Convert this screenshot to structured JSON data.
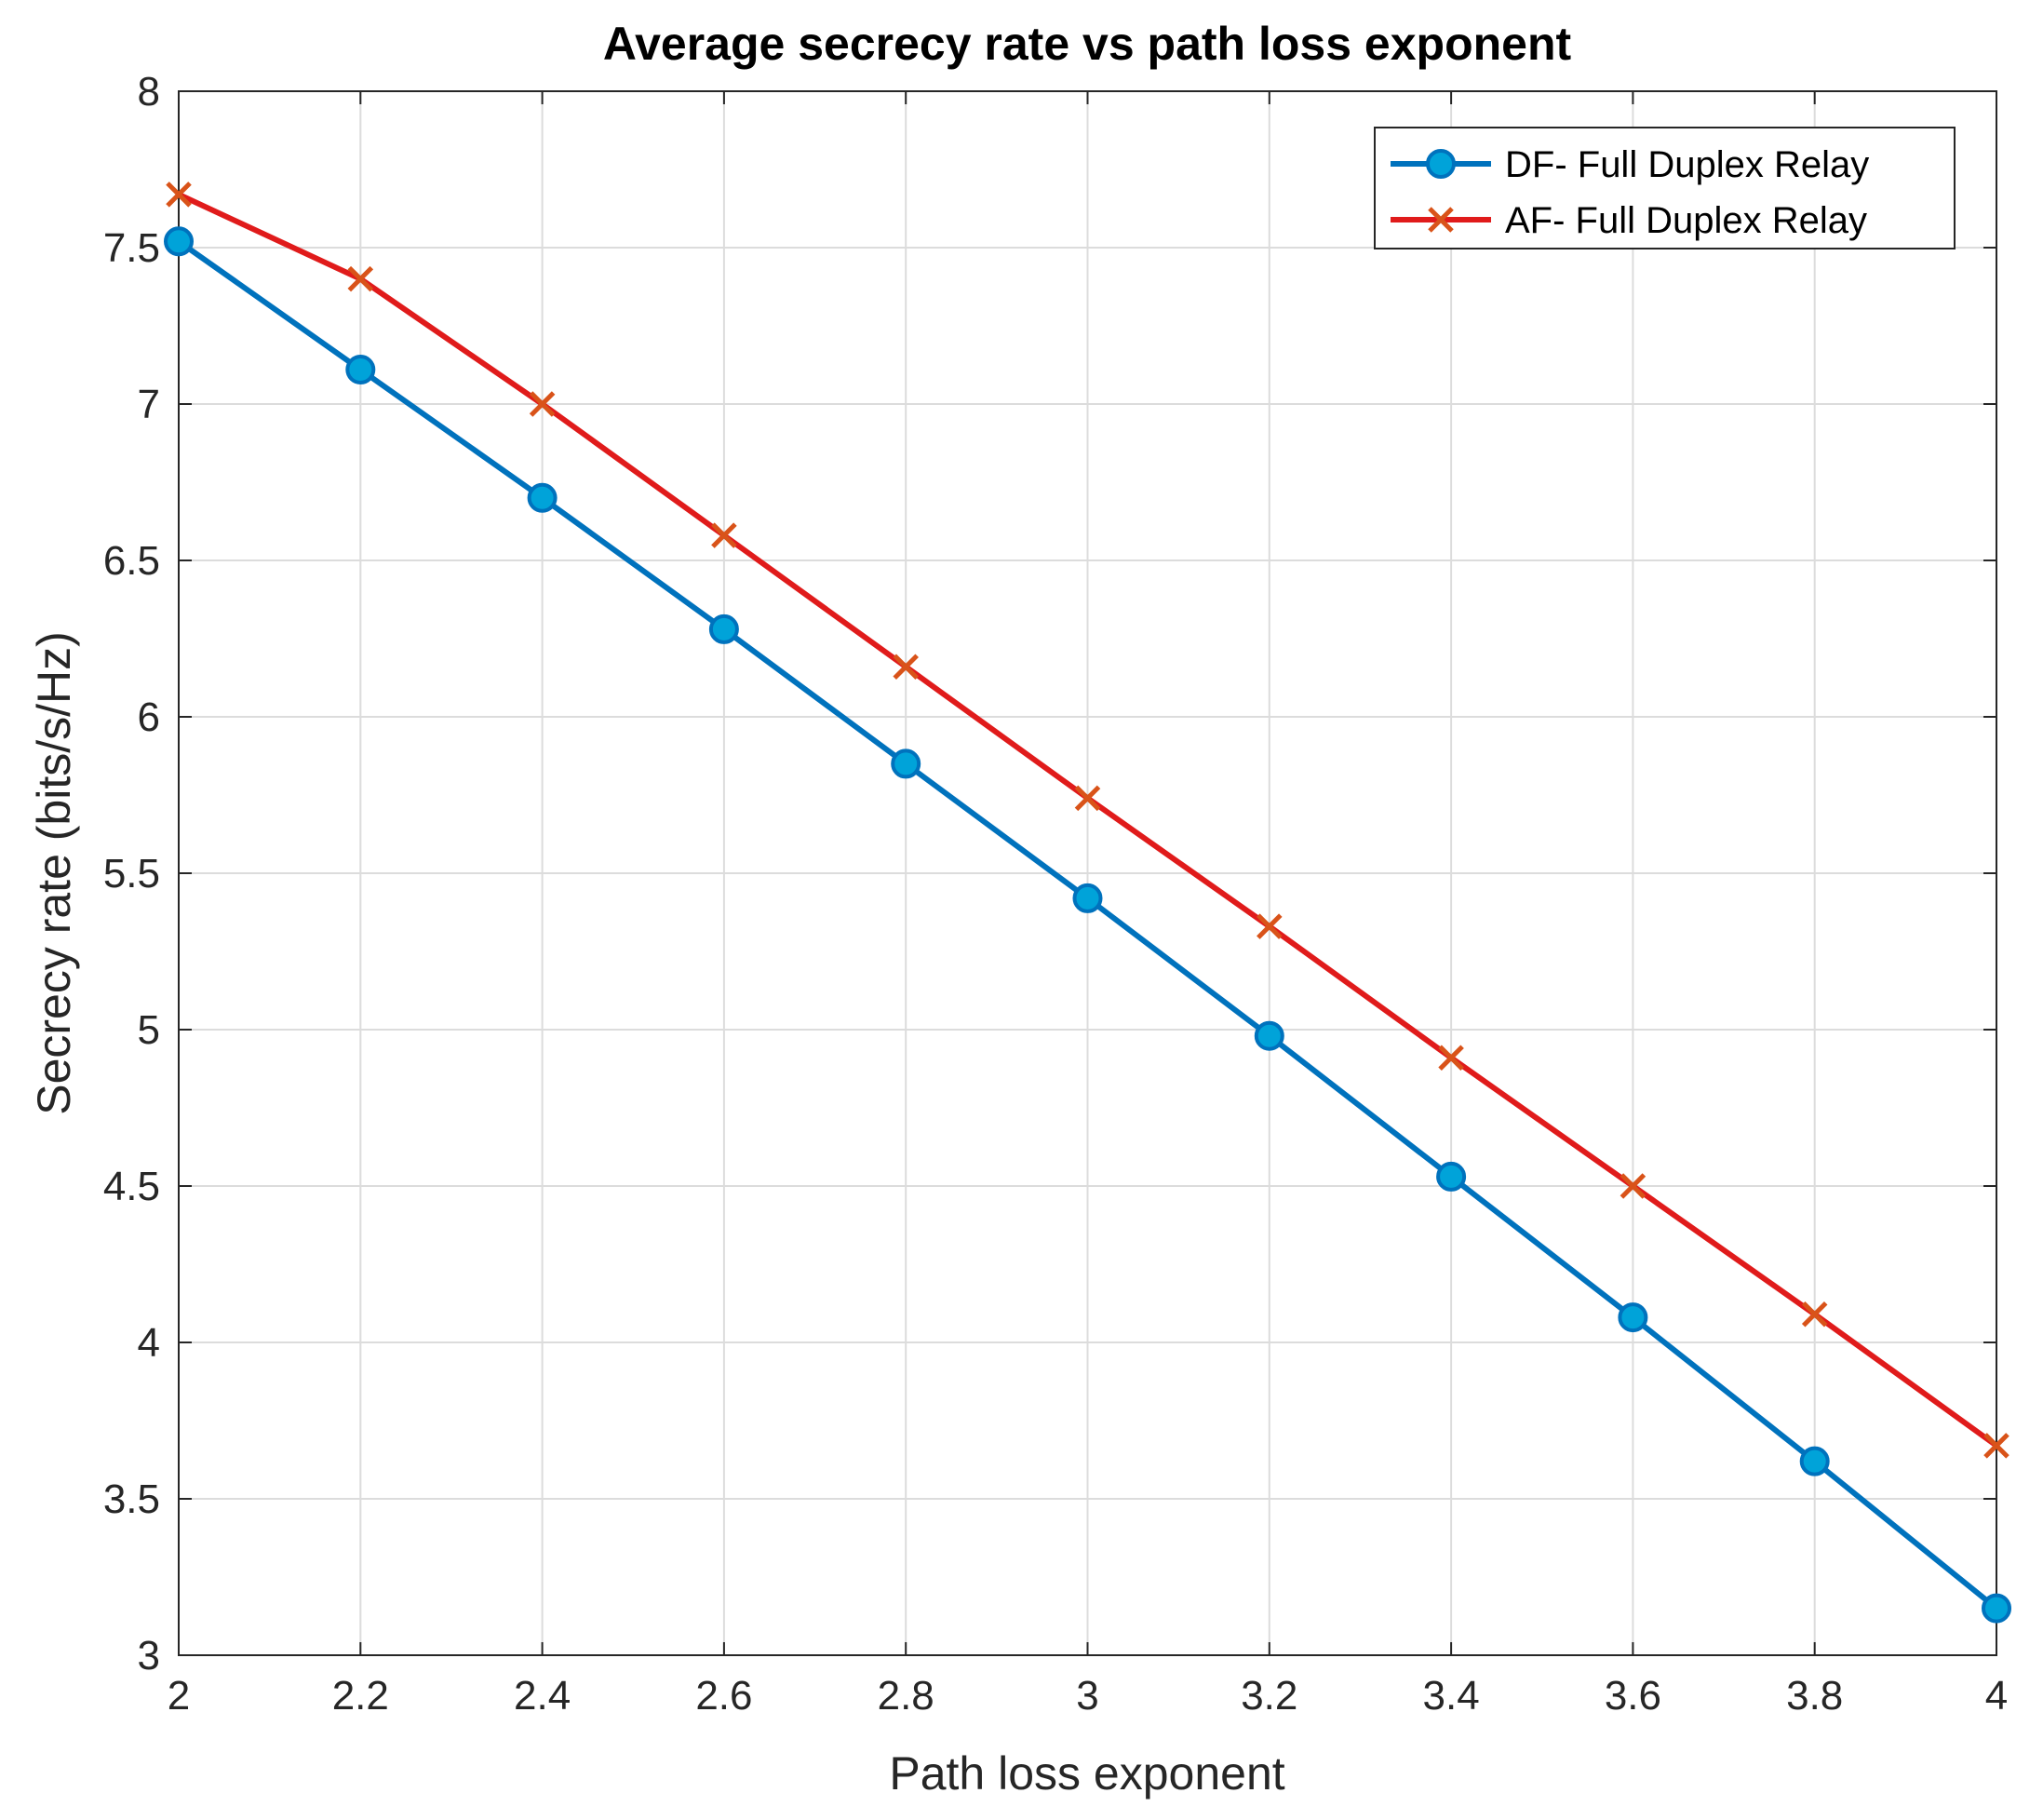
{
  "chart_data": {
    "type": "line",
    "title": "Average secrecy rate vs path loss exponent",
    "xlabel": "Path loss exponent",
    "ylabel": "Secrecy rate (bits/s/Hz)",
    "xlim": [
      2,
      4
    ],
    "ylim": [
      3,
      8
    ],
    "xticks": [
      "2",
      "2.2",
      "2.4",
      "2.6",
      "2.8",
      "3",
      "3.2",
      "3.4",
      "3.6",
      "3.8",
      "4"
    ],
    "yticks": [
      "3",
      "3.5",
      "4",
      "4.5",
      "5",
      "5.5",
      "6",
      "6.5",
      "7",
      "7.5",
      "8"
    ],
    "grid": true,
    "legend_position": "top-right",
    "x": [
      2.0,
      2.2,
      2.4,
      2.6,
      2.8,
      3.0,
      3.2,
      3.4,
      3.6,
      3.8,
      4.0
    ],
    "series": [
      {
        "name": "DF- Full Duplex Relay",
        "color": "#0072BD",
        "marker_color": "#00A3D9",
        "marker": "circle",
        "values": [
          7.52,
          7.11,
          6.7,
          6.28,
          5.85,
          5.42,
          4.98,
          4.53,
          4.08,
          3.62,
          3.15
        ]
      },
      {
        "name": "AF- Full Duplex Relay",
        "color": "#E01B1B",
        "marker_color": "#D95319",
        "marker": "x",
        "values": [
          7.67,
          7.4,
          7.0,
          6.58,
          6.16,
          5.74,
          5.33,
          4.91,
          4.5,
          4.09,
          3.67
        ]
      }
    ]
  }
}
